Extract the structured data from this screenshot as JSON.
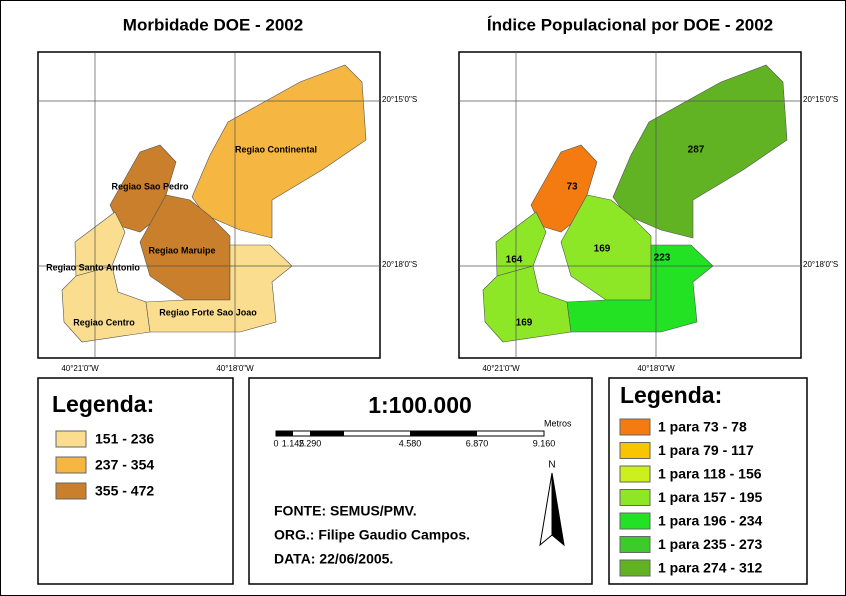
{
  "left_map": {
    "title": "Morbidade DOE - 2002",
    "regions": [
      "Regiao Continental",
      "Regiao Sao Pedro",
      "Regiao Maruipe",
      "Regiao Santo Antonio",
      "Regiao Centro",
      "Regiao Forte Sao Joao"
    ],
    "lat_labels": [
      "20°15'0\"S",
      "20°18'0\"S"
    ],
    "lon_labels": [
      "40°21'0\"W",
      "40°18'0\"W"
    ]
  },
  "right_map": {
    "title": "Índice Populacional por DOE - 2002",
    "region_values": [
      287,
      73,
      169,
      164,
      169,
      223
    ],
    "lat_labels": [
      "20°15'0\"S",
      "20°18'0\"S"
    ],
    "lon_labels": [
      "40°21'0\"W",
      "40°18'0\"W"
    ]
  },
  "left_legend": {
    "title": "Legenda:",
    "items": [
      {
        "label": "151 - 236",
        "color": "#fadd8e"
      },
      {
        "label": "237 - 354",
        "color": "#f5b642"
      },
      {
        "label": "355 - 472",
        "color": "#c97f2b"
      }
    ]
  },
  "scale": {
    "ratio": "1:100.000",
    "unit": "Metros",
    "ticks": [
      "0",
      "1.145",
      "2.290",
      "4.580",
      "6.870",
      "9.160"
    ],
    "north": "N"
  },
  "credits": [
    "FONTE: SEMUS/PMV.",
    "ORG.: Filipe Gaudio Campos.",
    "DATA: 22/06/2005."
  ],
  "right_legend": {
    "title": "Legenda:",
    "items": [
      {
        "label": "1 para 73 - 78",
        "color": "#f47b10"
      },
      {
        "label": "1 para 79 - 117",
        "color": "#f9c400"
      },
      {
        "label": "1 para 118 - 156",
        "color": "#ccef1e"
      },
      {
        "label": "1 para 157 - 195",
        "color": "#8de626"
      },
      {
        "label": "1 para 196 - 234",
        "color": "#23e123"
      },
      {
        "label": "1 para 235 - 273",
        "color": "#3dcb2c"
      },
      {
        "label": "1 para 274 - 312",
        "color": "#62b323"
      }
    ]
  }
}
